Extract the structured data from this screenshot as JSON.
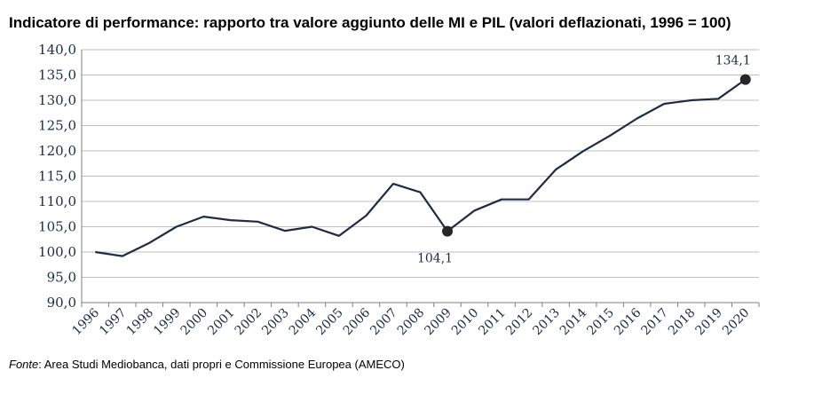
{
  "chart_data": {
    "type": "line",
    "title": "Indicatore di performance: rapporto tra valore aggiunto delle MI e PIL (valori deflazionati, 1996 = 100)",
    "xlabel": "",
    "ylabel": "",
    "categories": [
      "1996",
      "1997",
      "1998",
      "1999",
      "2000",
      "2001",
      "2002",
      "2003",
      "2004",
      "2005",
      "2006",
      "2007",
      "2008",
      "2009",
      "2010",
      "2011",
      "2012",
      "2013",
      "2014",
      "2015",
      "2016",
      "2017",
      "2018",
      "2019",
      "2020"
    ],
    "series": [
      {
        "values": [
          100.0,
          99.2,
          101.8,
          105.0,
          107.0,
          106.3,
          106.0,
          104.2,
          105.0,
          103.2,
          107.2,
          113.5,
          111.8,
          104.1,
          108.2,
          110.4,
          110.4,
          116.3,
          119.9,
          123.0,
          126.4,
          129.3,
          130.0,
          130.3,
          134.1
        ],
        "color": "#1f2a44"
      }
    ],
    "ylim": [
      90,
      140
    ],
    "y_ticks": [
      "90,0",
      "95,0",
      "100,0",
      "105,0",
      "110,0",
      "115,0",
      "120,0",
      "125,0",
      "130,0",
      "135,0",
      "140,0"
    ],
    "grid": true,
    "data_labels": [
      {
        "category": "2009",
        "text": "104,1",
        "position": "below"
      },
      {
        "category": "2020",
        "text": "134,1",
        "position": "above"
      }
    ]
  },
  "source": {
    "lead": "Fonte",
    "text": ": Area Studi Mediobanca, dati propri e Commissione Europea (AMECO)"
  },
  "style": {
    "grid_color": "#bfbfbf",
    "axis_color": "#7f7f7f",
    "marker_color": "#262626"
  }
}
